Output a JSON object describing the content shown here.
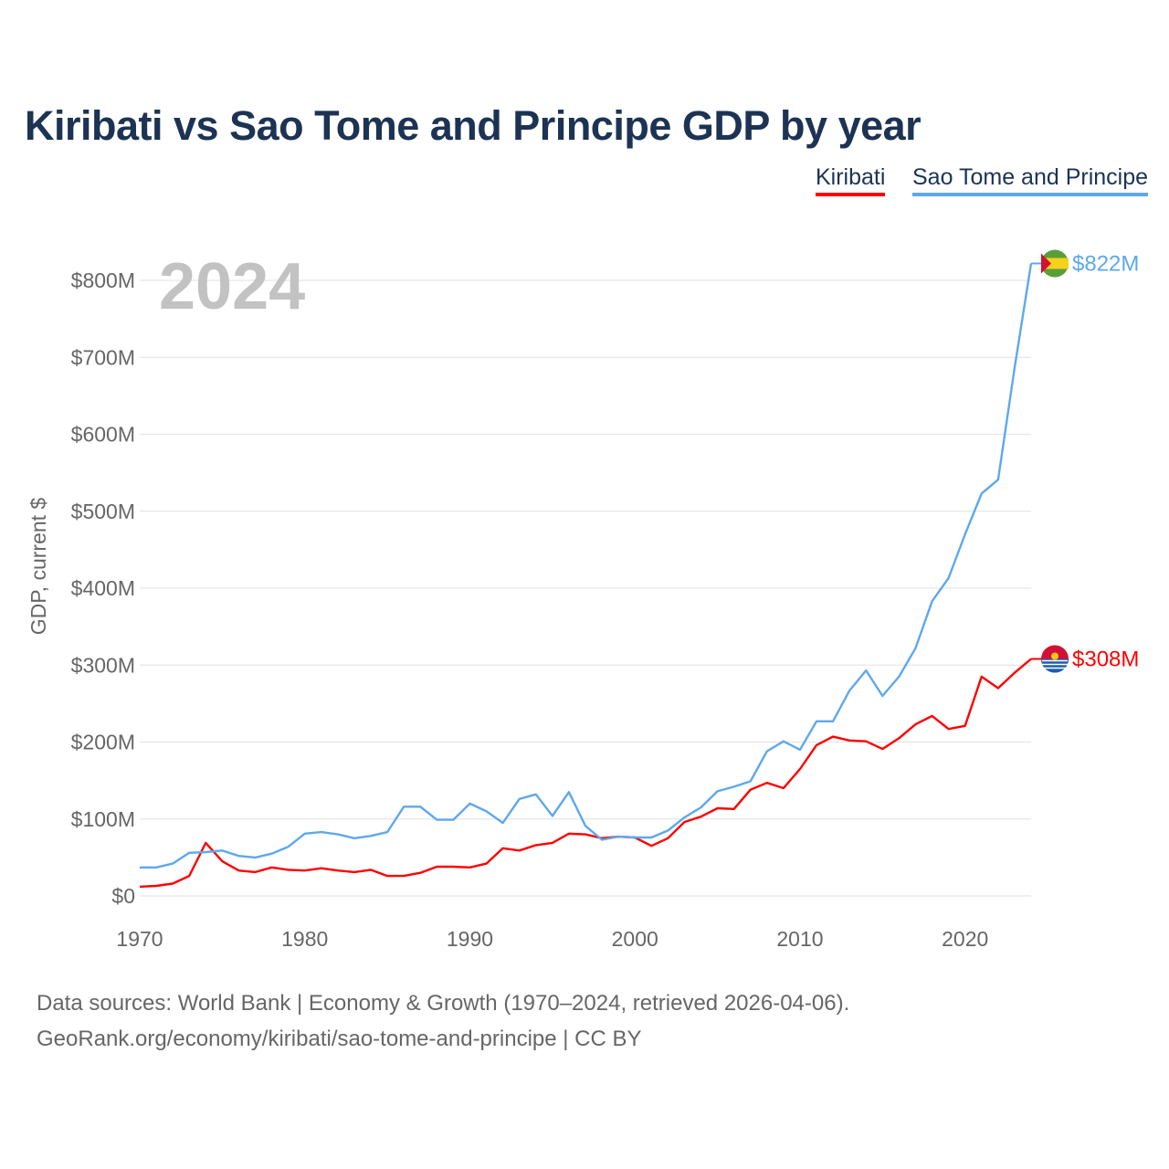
{
  "chart_data": {
    "type": "line",
    "title": "Kiribati vs Sao Tome and Principe GDP by year",
    "xlabel": "",
    "ylabel": "GDP, current $",
    "xlim": [
      1970,
      2024
    ],
    "ylim": [
      0,
      800
    ],
    "x_ticks": [
      1970,
      1980,
      1990,
      2000,
      2010,
      2020
    ],
    "x_tick_labels": [
      "1970",
      "1980",
      "1990",
      "2000",
      "2010",
      "2020"
    ],
    "y_ticks": [
      0,
      100,
      200,
      300,
      400,
      500,
      600,
      700,
      800
    ],
    "y_tick_labels": [
      "$0",
      "$100M",
      "$200M",
      "$300M",
      "$400M",
      "$500M",
      "$600M",
      "$700M",
      "$800M"
    ],
    "grid": true,
    "legend_position": "top-right",
    "year_watermark": "2024",
    "x": [
      1970,
      1971,
      1972,
      1973,
      1974,
      1975,
      1976,
      1977,
      1978,
      1979,
      1980,
      1981,
      1982,
      1983,
      1984,
      1985,
      1986,
      1987,
      1988,
      1989,
      1990,
      1991,
      1992,
      1993,
      1994,
      1995,
      1996,
      1997,
      1998,
      1999,
      2000,
      2001,
      2002,
      2003,
      2004,
      2005,
      2006,
      2007,
      2008,
      2009,
      2010,
      2011,
      2012,
      2013,
      2014,
      2015,
      2016,
      2017,
      2018,
      2019,
      2020,
      2021,
      2022,
      2023,
      2024
    ],
    "series": [
      {
        "name": "Kiribati",
        "color": "#ff0000",
        "end_label": "$308M",
        "values": [
          12,
          13,
          16,
          26,
          69,
          45,
          33,
          31,
          37,
          34,
          33,
          36,
          33,
          31,
          34,
          26,
          26,
          30,
          38,
          38,
          37,
          42,
          62,
          59,
          66,
          69,
          81,
          80,
          75,
          77,
          76,
          65,
          75,
          96,
          103,
          114,
          113,
          138,
          147,
          140,
          165,
          196,
          207,
          202,
          201,
          191,
          205,
          223,
          234,
          217,
          221,
          285,
          270,
          290,
          308
        ]
      },
      {
        "name": "Sao Tome and Principe",
        "color": "#5da8ee",
        "end_label": "$822M",
        "values": [
          37,
          37,
          42,
          56,
          57,
          59,
          52,
          50,
          55,
          64,
          81,
          83,
          80,
          75,
          78,
          83,
          116,
          116,
          99,
          99,
          120,
          110,
          95,
          126,
          132,
          104,
          135,
          91,
          73,
          77,
          76,
          76,
          85,
          102,
          115,
          136,
          142,
          149,
          188,
          201,
          190,
          227,
          227,
          267,
          293,
          260,
          285,
          322,
          383,
          413,
          470,
          523,
          541,
          686,
          822
        ]
      }
    ]
  },
  "sources": {
    "line1": "Data sources: World Bank | Economy & Growth (1970–2024, retrieved 2026-04-06).",
    "line2": "GeoRank.org/economy/kiribati/sao-tome-and-principe | CC BY"
  }
}
